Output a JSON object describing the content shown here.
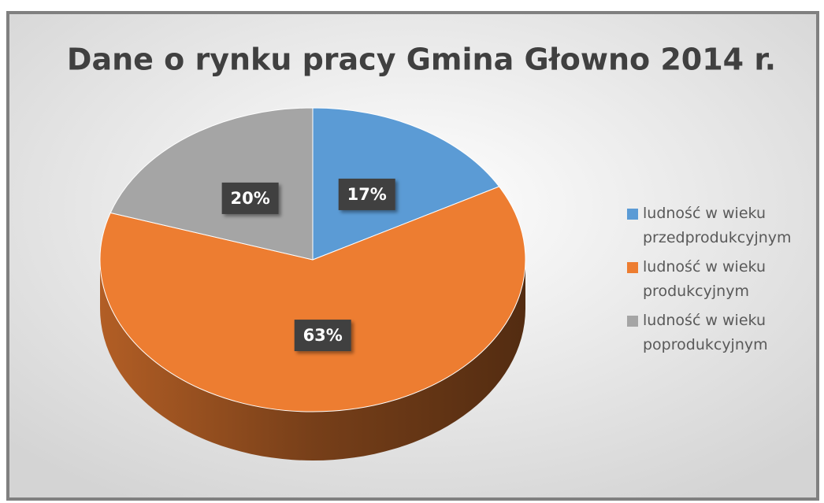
{
  "chart_data": {
    "type": "pie",
    "title": "Dane o rynku pracy Gmina Głowno 2014 r.",
    "categories": [
      "ludność w wieku przedprodukcyjnym",
      "ludność w wieku produkcyjnym",
      "ludność w wieku poprodukcyjnym"
    ],
    "values": [
      17,
      63,
      20
    ],
    "value_labels": [
      "17%",
      "63%",
      "20%"
    ],
    "colors": [
      "#5b9bd5",
      "#ed7d31",
      "#a5a5a5"
    ],
    "legend": "right"
  }
}
